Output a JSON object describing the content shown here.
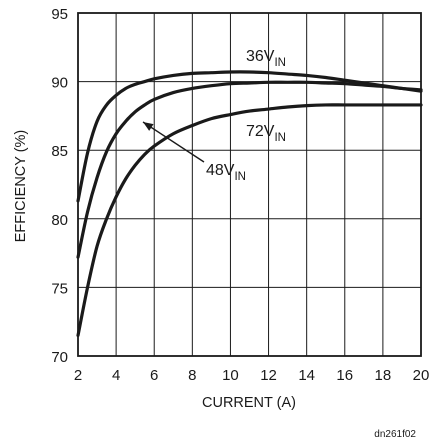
{
  "chart_data": {
    "type": "line",
    "xlabel": "CURRENT (A)",
    "ylabel": "EFFICIENCY (%)",
    "xlim": [
      2,
      20
    ],
    "ylim": [
      70,
      95
    ],
    "xticks": [
      "2",
      "4",
      "6",
      "8",
      "10",
      "12",
      "14",
      "16",
      "18",
      "20"
    ],
    "yticks": [
      "70",
      "75",
      "80",
      "85",
      "90",
      "95"
    ],
    "grid": true,
    "series": [
      {
        "name": "36V",
        "subscript": "IN",
        "x": [
          2,
          2.5,
          3,
          3.5,
          4,
          4.5,
          5,
          5.5,
          6,
          7,
          8,
          9,
          10,
          11,
          12,
          13,
          14,
          15,
          16,
          17,
          18,
          19,
          20
        ],
        "y": [
          81.3,
          84.8,
          87.1,
          88.3,
          89.0,
          89.5,
          89.8,
          90.0,
          90.2,
          90.45,
          90.6,
          90.65,
          90.7,
          90.7,
          90.65,
          90.55,
          90.45,
          90.3,
          90.1,
          89.9,
          89.7,
          89.5,
          89.3
        ]
      },
      {
        "name": "48V",
        "subscript": "IN",
        "x": [
          2,
          2.5,
          3,
          3.5,
          4,
          4.5,
          5,
          5.5,
          6,
          7,
          8,
          9,
          10,
          11,
          12,
          13,
          14,
          15,
          16,
          17,
          18,
          19,
          20
        ],
        "y": [
          77.2,
          80.5,
          83.0,
          84.9,
          86.2,
          87.1,
          87.8,
          88.3,
          88.7,
          89.2,
          89.5,
          89.7,
          89.85,
          89.9,
          89.95,
          89.95,
          89.95,
          89.9,
          89.85,
          89.75,
          89.65,
          89.5,
          89.4
        ]
      },
      {
        "name": "72V",
        "subscript": "IN",
        "x": [
          2,
          2.5,
          3,
          3.5,
          4,
          4.5,
          5,
          5.5,
          6,
          7,
          8,
          9,
          10,
          11,
          12,
          13,
          14,
          15,
          16,
          17,
          18,
          19,
          20
        ],
        "y": [
          71.5,
          75.0,
          78.0,
          80.0,
          81.6,
          82.9,
          83.9,
          84.7,
          85.3,
          86.2,
          86.8,
          87.3,
          87.6,
          87.85,
          88.0,
          88.15,
          88.25,
          88.3,
          88.3,
          88.3,
          88.3,
          88.3,
          88.3
        ]
      }
    ],
    "annotations": [
      {
        "text": "36V",
        "subscript": "IN",
        "series": "36V"
      },
      {
        "text": "72V",
        "subscript": "IN",
        "series": "72V"
      },
      {
        "text": "48V",
        "subscript": "IN",
        "series": "48V",
        "arrow": true
      }
    ]
  },
  "figure_id": "dn261f02",
  "colors": {
    "curve": "#1a1a1a",
    "grid": "#1a1a1a",
    "background": "#ffffff"
  }
}
